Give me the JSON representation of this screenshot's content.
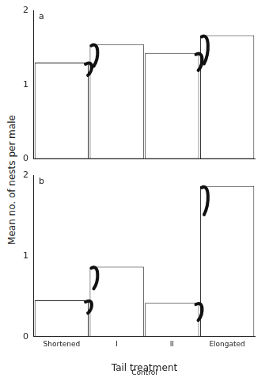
{
  "chart_data": [
    {
      "type": "bar",
      "title": "a",
      "ylabel": "Mean no. of nests per male",
      "categories": [
        "Shortened",
        "I",
        "II",
        "Elongated"
      ],
      "values": [
        1.3,
        1.55,
        1.43,
        1.67
      ],
      "color": "#ffffff",
      "ylim": [
        0,
        2
      ],
      "yticks": [
        0,
        1,
        2
      ],
      "grid": false,
      "tick_labels": "y"
    },
    {
      "type": "bar",
      "title": "b",
      "xlabel": "Tail treatment",
      "annotations": [
        "Control"
      ],
      "categories": [
        "Shortened",
        "I",
        "II",
        "Elongated"
      ],
      "values": [
        0.45,
        0.87,
        0.42,
        1.87
      ],
      "color": "#ffffff",
      "ylim": [
        0,
        2
      ],
      "yticks": [
        0,
        1,
        2
      ],
      "grid": false
    }
  ]
}
